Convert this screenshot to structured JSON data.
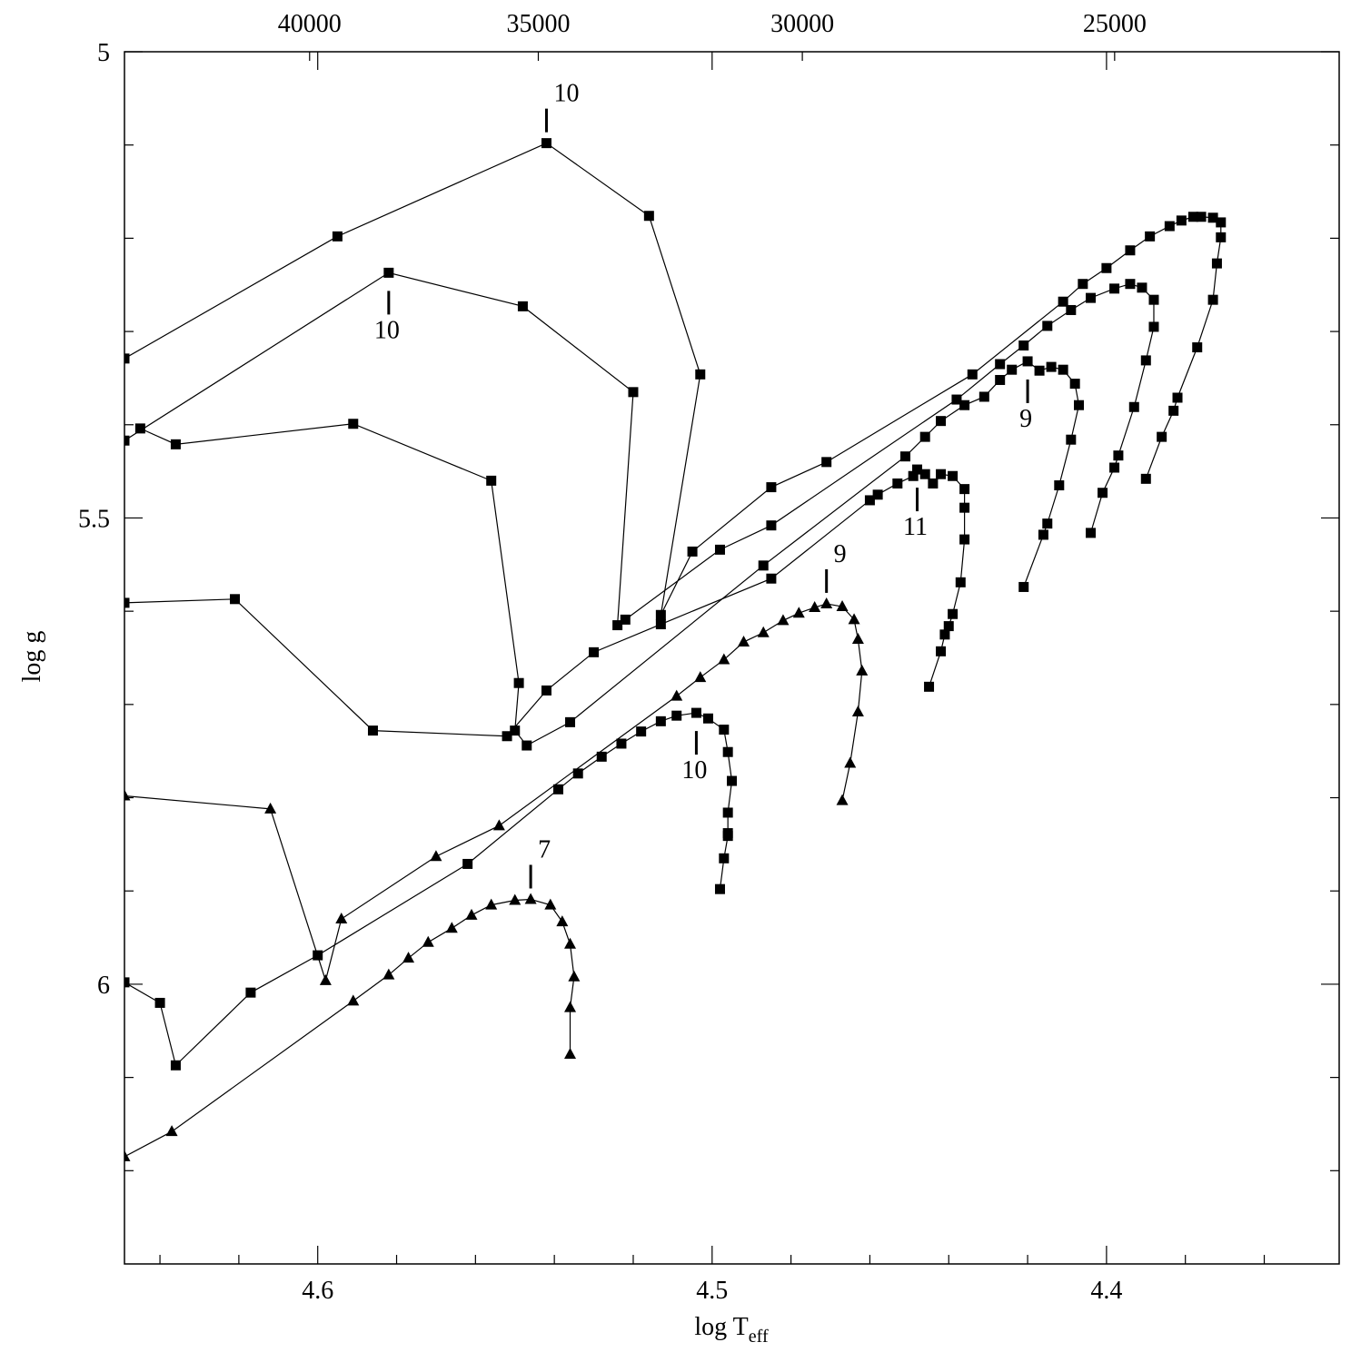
{
  "chart_data": {
    "type": "line",
    "xlabel": "log T",
    "xlabel_subscript": "eff",
    "ylabel": "log g",
    "xlim": [
      4.649,
      4.341
    ],
    "xticks": [
      4.6,
      4.5,
      4.4
    ],
    "x_minor_ticks": [
      4.64,
      4.62,
      4.58,
      4.56,
      4.54,
      4.52,
      4.48,
      4.46,
      4.44,
      4.42,
      4.38,
      4.36
    ],
    "x2scale": "log10",
    "x2ticks": [
      40000,
      35000,
      30000,
      25000
    ],
    "ylim": [
      5,
      6.3
    ],
    "yticks": [
      5,
      5.5,
      6
    ],
    "y_minor_ticks": [
      5.1,
      5.2,
      5.3,
      5.4,
      5.6,
      5.7,
      5.8,
      5.9,
      6.1,
      6.2
    ],
    "series": [
      {
        "marker": "square",
        "color": "#000000",
        "label": "10",
        "label_side": "above",
        "x": [
          4.649,
          4.595,
          4.542,
          4.516,
          4.503,
          4.513,
          4.505,
          4.485,
          4.471,
          4.434,
          4.411,
          4.406,
          4.4,
          4.394,
          4.389,
          4.384,
          4.381,
          4.378,
          4.376,
          4.373,
          4.371,
          4.371,
          4.372,
          4.373,
          4.377,
          4.382,
          4.383,
          4.386,
          4.39
        ],
        "values": [
          5.329,
          5.198,
          5.098,
          5.176,
          5.346,
          5.604,
          5.536,
          5.467,
          5.44,
          5.346,
          5.268,
          5.249,
          5.232,
          5.213,
          5.198,
          5.187,
          5.181,
          5.177,
          5.177,
          5.178,
          5.183,
          5.199,
          5.227,
          5.266,
          5.317,
          5.371,
          5.385,
          5.413,
          5.458
        ]
      },
      {
        "marker": "square",
        "color": "#000000",
        "label": "10",
        "label_side": "below",
        "x": [
          4.649,
          4.582,
          4.548,
          4.52,
          4.524,
          4.522,
          4.498,
          4.485,
          4.438,
          4.427,
          4.421,
          4.415,
          4.409,
          4.404,
          4.398,
          4.394,
          4.391,
          4.388,
          4.388,
          4.39,
          4.393,
          4.397,
          4.398,
          4.401,
          4.404
        ],
        "values": [
          5.417,
          5.237,
          5.273,
          5.365,
          5.615,
          5.609,
          5.534,
          5.508,
          5.373,
          5.335,
          5.315,
          5.294,
          5.277,
          5.264,
          5.254,
          5.249,
          5.253,
          5.266,
          5.295,
          5.331,
          5.381,
          5.433,
          5.446,
          5.473,
          5.516
        ]
      },
      {
        "marker": "square",
        "color": "#000000",
        "label": "9",
        "label_side": "below",
        "x": [
          4.645,
          4.636,
          4.591,
          4.556,
          4.549,
          4.55,
          4.547,
          4.536,
          4.487,
          4.451,
          4.446,
          4.442,
          4.436,
          4.431,
          4.427,
          4.424,
          4.42,
          4.417,
          4.414,
          4.411,
          4.408,
          4.407,
          4.409,
          4.412,
          4.415,
          4.416,
          4.421
        ],
        "values": [
          5.404,
          5.421,
          5.399,
          5.46,
          5.677,
          5.728,
          5.744,
          5.719,
          5.551,
          5.434,
          5.413,
          5.396,
          5.379,
          5.37,
          5.352,
          5.341,
          5.332,
          5.342,
          5.338,
          5.341,
          5.356,
          5.379,
          5.416,
          5.465,
          5.506,
          5.518,
          5.574
        ]
      },
      {
        "marker": "square",
        "color": "#000000",
        "label": "11",
        "label_side": "below",
        "x": [
          4.649,
          4.621,
          4.586,
          4.552,
          4.542,
          4.53,
          4.513,
          4.485,
          4.46,
          4.458,
          4.453,
          4.449,
          4.448,
          4.446,
          4.444,
          4.442,
          4.439,
          4.436,
          4.436,
          4.436,
          4.437,
          4.439,
          4.44,
          4.441,
          4.442,
          4.445
        ],
        "values": [
          5.591,
          5.587,
          5.728,
          5.734,
          5.685,
          5.644,
          5.614,
          5.565,
          5.481,
          5.475,
          5.463,
          5.455,
          5.448,
          5.453,
          5.463,
          5.453,
          5.455,
          5.469,
          5.489,
          5.523,
          5.569,
          5.603,
          5.616,
          5.625,
          5.643,
          5.681
        ]
      },
      {
        "marker": "square",
        "color": "#000000",
        "label": "10",
        "label_side": "below",
        "x": [
          4.649,
          4.64,
          4.636,
          4.617,
          4.6,
          4.562,
          4.539,
          4.534,
          4.528,
          4.523,
          4.518,
          4.513,
          4.509,
          4.504,
          4.501,
          4.497,
          4.496,
          4.495,
          4.496,
          4.496,
          4.496,
          4.497,
          4.498
        ],
        "values": [
          5.998,
          6.02,
          6.087,
          6.009,
          5.969,
          5.871,
          5.791,
          5.774,
          5.756,
          5.742,
          5.729,
          5.718,
          5.712,
          5.709,
          5.715,
          5.727,
          5.751,
          5.782,
          5.816,
          5.838,
          5.841,
          5.865,
          5.898
        ]
      },
      {
        "marker": "triangle",
        "color": "#000000",
        "label": "9",
        "label_side": "above",
        "x": [
          4.649,
          4.612,
          4.598,
          4.594,
          4.57,
          4.554,
          4.509,
          4.503,
          4.497,
          4.492,
          4.487,
          4.482,
          4.478,
          4.474,
          4.471,
          4.467,
          4.464,
          4.463,
          4.462,
          4.463,
          4.465,
          4.467
        ],
        "values": [
          5.798,
          5.812,
          5.996,
          5.93,
          5.863,
          5.83,
          5.691,
          5.671,
          5.652,
          5.633,
          5.623,
          5.61,
          5.602,
          5.596,
          5.592,
          5.595,
          5.609,
          5.63,
          5.664,
          5.708,
          5.763,
          5.803
        ]
      },
      {
        "marker": "triangle",
        "color": "#000000",
        "label": "7",
        "label_side": "above",
        "x": [
          4.649,
          4.637,
          4.591,
          4.582,
          4.577,
          4.572,
          4.566,
          4.561,
          4.556,
          4.55,
          4.546,
          4.541,
          4.538,
          4.536,
          4.535,
          4.536,
          4.536
        ],
        "values": [
          6.185,
          6.158,
          6.018,
          5.99,
          5.972,
          5.955,
          5.94,
          5.926,
          5.915,
          5.91,
          5.909,
          5.915,
          5.933,
          5.957,
          5.992,
          6.025,
          6.075
        ]
      }
    ]
  }
}
